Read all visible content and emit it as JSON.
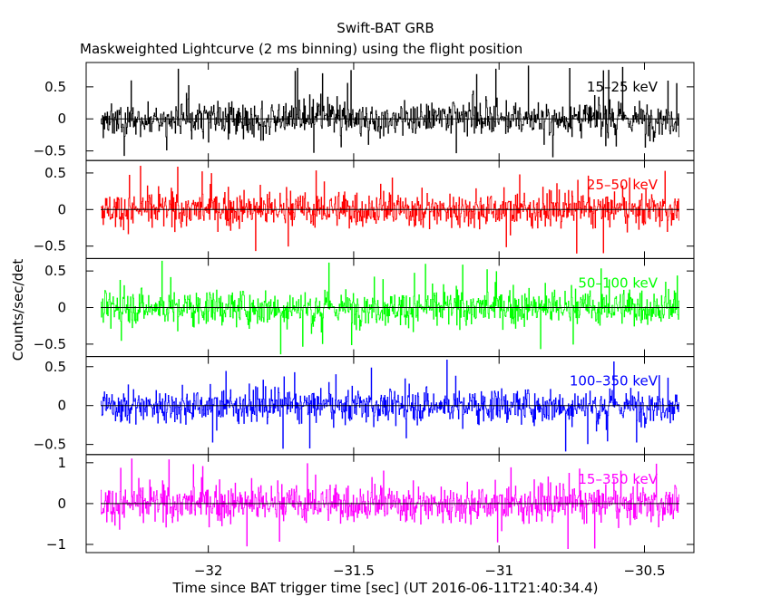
{
  "chart_data": {
    "type": "line",
    "title": "Swift-BAT GRB",
    "subtitle": "Maskweighted Lightcurve (2 ms binning) using the flight position",
    "xlabel": "Time since BAT trigger time [sec] (UT 2016-06-11T21:40:34.4)",
    "ylabel": "Counts/sec/det",
    "xlim": [
      -32.42,
      -30.33
    ],
    "x_range_data": [
      -32.37,
      -30.38
    ],
    "bin_width": 0.002,
    "xticks": [
      -32,
      -31.5,
      -31,
      -30.5
    ],
    "xtick_labels": [
      "−32",
      "−31.5",
      "−31",
      "−30.5"
    ],
    "grid": false,
    "panels": [
      {
        "band": "15–25 keV",
        "color": "#000000",
        "ylim": [
          -0.65,
          0.88
        ],
        "yticks": [
          -0.5,
          0,
          0.5
        ],
        "ytick_labels": [
          "−0.5",
          "0",
          "0.5"
        ],
        "mean": 0,
        "noise_rms": 0.25,
        "spike_range": [
          -0.6,
          0.85
        ]
      },
      {
        "band": "25–50 keV",
        "color": "#ff0000",
        "ylim": [
          -0.67,
          0.67
        ],
        "yticks": [
          -0.5,
          0,
          0.5
        ],
        "ytick_labels": [
          "−0.5",
          "0",
          "0.5"
        ],
        "mean": 0,
        "noise_rms": 0.22,
        "spike_range": [
          -0.65,
          0.65
        ]
      },
      {
        "band": "50–100 keV",
        "color": "#00ff00",
        "ylim": [
          -0.67,
          0.67
        ],
        "yticks": [
          -0.5,
          0,
          0.5
        ],
        "ytick_labels": [
          "−0.5",
          "0",
          "0.5"
        ],
        "mean": 0,
        "noise_rms": 0.22,
        "spike_range": [
          -0.65,
          0.65
        ]
      },
      {
        "band": "100–350 keV",
        "color": "#0000ff",
        "ylim": [
          -0.63,
          0.63
        ],
        "yticks": [
          -0.5,
          0,
          0.5
        ],
        "ytick_labels": [
          "−0.5",
          "0",
          "0.5"
        ],
        "mean": 0,
        "noise_rms": 0.2,
        "spike_range": [
          -0.6,
          0.6
        ]
      },
      {
        "band": "15–350 keV",
        "color": "#ff00ff",
        "ylim": [
          -1.2,
          1.2
        ],
        "yticks": [
          -1,
          0,
          1
        ],
        "ytick_labels": [
          "−1",
          "0",
          "1"
        ],
        "mean": 0,
        "noise_rms": 0.42,
        "spike_range": [
          -1.2,
          1.2
        ]
      }
    ]
  }
}
